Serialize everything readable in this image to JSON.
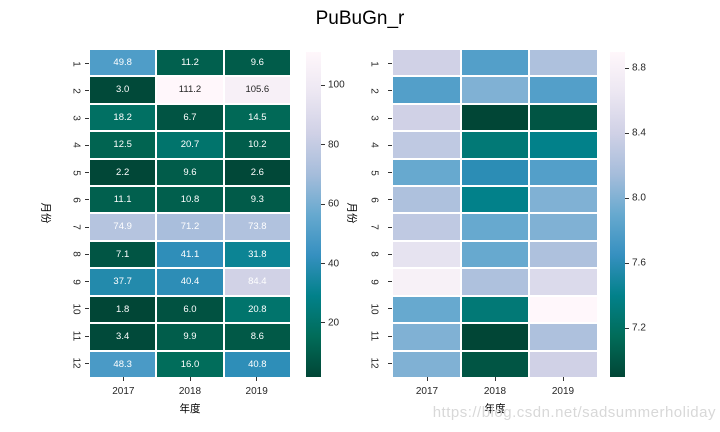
{
  "title": "PuBuGn_r",
  "watermark": "https://blog.csdn.net/sadsummerholiday",
  "colormap": {
    "name": "PuBuGn_r",
    "anchors": [
      "#fff7fb",
      "#ece7f2",
      "#d0d1e6",
      "#a6bddb",
      "#67a9cf",
      "#3690c0",
      "#02818a",
      "#016c59",
      "#014636"
    ]
  },
  "chart_data": [
    {
      "type": "heatmap",
      "xlabel": "年度",
      "ylabel": "月份",
      "x": [
        "2017",
        "2018",
        "2019"
      ],
      "y": [
        "1",
        "2",
        "3",
        "4",
        "5",
        "6",
        "7",
        "8",
        "9",
        "10",
        "11",
        "12"
      ],
      "vmin": 1.8,
      "vmax": 111.2,
      "annotated": true,
      "legend_position": "right-colorbar",
      "colorbar_ticks": [
        {
          "v": 100,
          "label": "100"
        },
        {
          "v": 80,
          "label": "80"
        },
        {
          "v": 60,
          "label": "60"
        },
        {
          "v": 40,
          "label": "40"
        },
        {
          "v": 20,
          "label": "20"
        }
      ],
      "rows": [
        [
          49.8,
          11.2,
          9.6
        ],
        [
          3.0,
          111.2,
          105.6
        ],
        [
          18.2,
          6.7,
          14.5
        ],
        [
          12.5,
          20.7,
          10.2
        ],
        [
          2.2,
          9.6,
          2.6
        ],
        [
          11.1,
          10.8,
          9.3
        ],
        [
          74.9,
          71.2,
          73.8
        ],
        [
          7.1,
          41.1,
          31.8
        ],
        [
          37.7,
          40.4,
          84.4
        ],
        [
          1.8,
          6.0,
          20.8
        ],
        [
          3.4,
          9.9,
          8.6
        ],
        [
          48.3,
          16.0,
          40.8
        ]
      ]
    },
    {
      "type": "heatmap",
      "xlabel": "年度",
      "ylabel": "月份",
      "x": [
        "2017",
        "2018",
        "2019"
      ],
      "y": [
        "1",
        "2",
        "3",
        "4",
        "5",
        "6",
        "7",
        "8",
        "9",
        "10",
        "11",
        "12"
      ],
      "vmin": 6.9,
      "vmax": 8.9,
      "annotated": false,
      "legend_position": "right-colorbar",
      "colorbar_ticks": [
        {
          "v": 8.8,
          "label": "8.8"
        },
        {
          "v": 8.4,
          "label": "8.4"
        },
        {
          "v": 8.0,
          "label": "8.0"
        },
        {
          "v": 7.6,
          "label": "7.6"
        },
        {
          "v": 7.2,
          "label": "7.2"
        }
      ],
      "rows": [
        [
          8.4,
          7.8,
          8.2
        ],
        [
          7.8,
          8.0,
          7.8
        ],
        [
          8.4,
          6.9,
          7.0
        ],
        [
          8.3,
          7.3,
          7.4
        ],
        [
          7.9,
          7.6,
          7.8
        ],
        [
          8.2,
          7.4,
          8.0
        ],
        [
          8.3,
          7.9,
          8.0
        ],
        [
          8.6,
          7.9,
          8.2
        ],
        [
          8.8,
          8.2,
          8.5
        ],
        [
          7.9,
          7.3,
          8.9
        ],
        [
          8.0,
          6.9,
          8.2
        ],
        [
          8.0,
          7.0,
          8.4
        ]
      ]
    }
  ]
}
